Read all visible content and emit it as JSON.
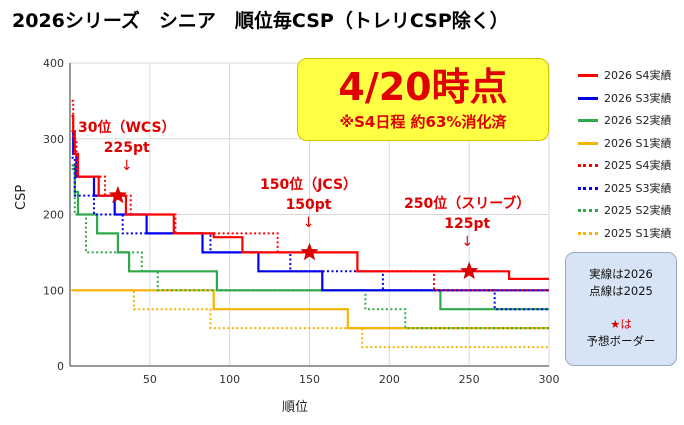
{
  "chart_data": {
    "type": "line",
    "title": "2026シリーズ　シニア　順位毎CSP（トレリCSP除く）",
    "xlabel": "順位",
    "ylabel": "CSP",
    "xlim": [
      0,
      300
    ],
    "ylim": [
      0,
      400
    ],
    "xticks": [
      50,
      100,
      150,
      200,
      250,
      300
    ],
    "yticks": [
      0,
      100,
      200,
      300,
      400
    ],
    "grid": true,
    "legend_position": "right",
    "series": [
      {
        "name": "2026 S4実績",
        "color": "#ff0000",
        "dash": "solid",
        "points": [
          [
            1,
            330
          ],
          [
            2,
            310
          ],
          [
            3,
            280
          ],
          [
            5,
            250
          ],
          [
            18,
            225
          ],
          [
            35,
            200
          ],
          [
            65,
            175
          ],
          [
            90,
            170
          ],
          [
            108,
            150
          ],
          [
            180,
            125
          ],
          [
            275,
            115
          ],
          [
            300,
            115
          ]
        ]
      },
      {
        "name": "2026 S3実績",
        "color": "#0000ee",
        "dash": "solid",
        "points": [
          [
            1,
            310
          ],
          [
            2,
            280
          ],
          [
            4,
            250
          ],
          [
            15,
            225
          ],
          [
            28,
            200
          ],
          [
            48,
            175
          ],
          [
            83,
            150
          ],
          [
            105,
            150
          ],
          [
            118,
            125
          ],
          [
            142,
            125
          ],
          [
            158,
            100
          ],
          [
            300,
            100
          ]
        ]
      },
      {
        "name": "2026 S2実績",
        "color": "#2ea84a",
        "dash": "solid",
        "points": [
          [
            1,
            265
          ],
          [
            3,
            230
          ],
          [
            5,
            200
          ],
          [
            17,
            175
          ],
          [
            30,
            150
          ],
          [
            37,
            125
          ],
          [
            92,
            100
          ],
          [
            222,
            100
          ],
          [
            232,
            75
          ],
          [
            300,
            75
          ]
        ]
      },
      {
        "name": "2026 S1実績",
        "color": "#f6b400",
        "dash": "solid",
        "points": [
          [
            1,
            100
          ],
          [
            88,
            100
          ],
          [
            90,
            75
          ],
          [
            172,
            75
          ],
          [
            174,
            50
          ],
          [
            300,
            50
          ]
        ]
      },
      {
        "name": "2025 S4実績",
        "color": "#ff0000",
        "dash": "dotted",
        "points": [
          [
            1,
            350
          ],
          [
            2,
            300
          ],
          [
            4,
            250
          ],
          [
            22,
            225
          ],
          [
            38,
            200
          ],
          [
            66,
            175
          ],
          [
            130,
            150
          ],
          [
            180,
            125
          ],
          [
            228,
            100
          ],
          [
            300,
            100
          ]
        ]
      },
      {
        "name": "2025 S3実績",
        "color": "#0000ee",
        "dash": "dotted",
        "points": [
          [
            1,
            275
          ],
          [
            3,
            225
          ],
          [
            15,
            200
          ],
          [
            33,
            175
          ],
          [
            88,
            150
          ],
          [
            138,
            125
          ],
          [
            196,
            100
          ],
          [
            245,
            100
          ],
          [
            266,
            75
          ],
          [
            300,
            75
          ]
        ]
      },
      {
        "name": "2025 S2実績",
        "color": "#2ea84a",
        "dash": "dotted",
        "points": [
          [
            1,
            260
          ],
          [
            3,
            200
          ],
          [
            10,
            150
          ],
          [
            45,
            125
          ],
          [
            55,
            100
          ],
          [
            165,
            100
          ],
          [
            185,
            75
          ],
          [
            200,
            75
          ],
          [
            210,
            50
          ],
          [
            300,
            50
          ]
        ]
      },
      {
        "name": "2025 S1実績",
        "color": "#f6b400",
        "dash": "dotted",
        "points": [
          [
            1,
            100
          ],
          [
            35,
            100
          ],
          [
            40,
            75
          ],
          [
            85,
            75
          ],
          [
            88,
            50
          ],
          [
            180,
            50
          ],
          [
            183,
            25
          ],
          [
            300,
            25
          ]
        ]
      }
    ],
    "predicted_borders": [
      {
        "rank": 30,
        "value": 225,
        "label": "30位（WCS）",
        "value_label": "225pt"
      },
      {
        "rank": 150,
        "value": 150,
        "label": "150位（JCS）",
        "value_label": "150pt"
      },
      {
        "rank": 250,
        "value": 125,
        "label": "250位（スリーブ）",
        "value_label": "125pt"
      }
    ]
  },
  "callout": {
    "main": "4/20時点",
    "sub": "※S4日程 約63%消化済"
  },
  "note": {
    "line1": "実線は2026",
    "line2": "点線は2025",
    "star": "★は",
    "line3": "予想ボーダー"
  },
  "colors": {
    "star": "#e00000",
    "callout_bg": "#ffff44",
    "note_bg": "#d6e4f5"
  }
}
